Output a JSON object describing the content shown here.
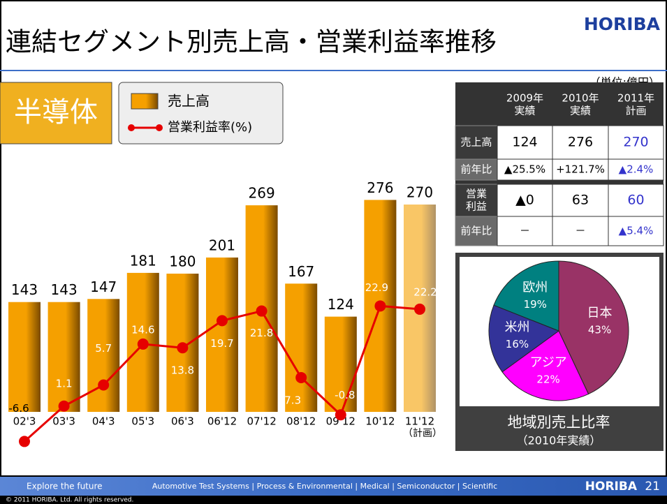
{
  "header": {
    "title": "連結セグメント別売上高・営業利益率推移",
    "logo": "HORIBA",
    "unit": "（単位:億円）"
  },
  "segment": "半導体",
  "chart_data": [
    {
      "type": "bar-line",
      "categories": [
        "02'3",
        "03'3",
        "04'3",
        "05'3",
        "06'3",
        "06'12",
        "07'12",
        "08'12",
        "09'12",
        "10'12",
        "11'12"
      ],
      "plan_note": "（計画）",
      "series": [
        {
          "name": "売上高",
          "color": "#f5a000",
          "values": [
            143,
            143,
            147,
            181,
            180,
            201,
            269,
            167,
            124,
            276,
            270
          ]
        },
        {
          "name": "営業利益率(%)",
          "color": "#e60000",
          "axis": "y2",
          "values": [
            -6.6,
            1.1,
            5.7,
            14.6,
            13.8,
            19.7,
            21.8,
            7.3,
            -0.8,
            22.9,
            22.2
          ]
        }
      ]
    },
    {
      "type": "pie",
      "title": "地域別売上比率",
      "subtitle": "（2010年実績）",
      "categories": [
        "日本",
        "アジア",
        "米州",
        "欧州"
      ],
      "values": [
        43,
        22,
        16,
        19
      ],
      "value_labels": [
        "43%",
        "22%",
        "16%",
        "19%"
      ],
      "colors": [
        "#993366",
        "#ff00ff",
        "#333399",
        "#008080"
      ]
    }
  ],
  "table": {
    "columns": [
      [
        "2009年",
        "実績"
      ],
      [
        "2010年",
        "実績"
      ],
      [
        "2011年",
        "計画"
      ]
    ],
    "rows": [
      {
        "label": [
          "売上高"
        ],
        "cells": [
          "124",
          "276",
          "270"
        ]
      },
      {
        "label": [
          "前年比"
        ],
        "cells": [
          "▲25.5%",
          "+121.7%",
          "▲2.4%"
        ]
      },
      {
        "label": [
          "営業",
          "利益"
        ],
        "cells": [
          "▲0",
          "63",
          "60"
        ]
      },
      {
        "label": [
          "前年比"
        ],
        "cells": [
          "－",
          "－",
          "▲5.4%"
        ]
      }
    ]
  },
  "footer": {
    "tagline": "Explore the future",
    "segments": "Automotive Test Systems | Process & Environmental | Medical | Semiconductor | Scientific",
    "logo": "HORIBA",
    "page": "21",
    "copyright": "© 2011 HORIBA. Ltd. All rights reserved."
  }
}
